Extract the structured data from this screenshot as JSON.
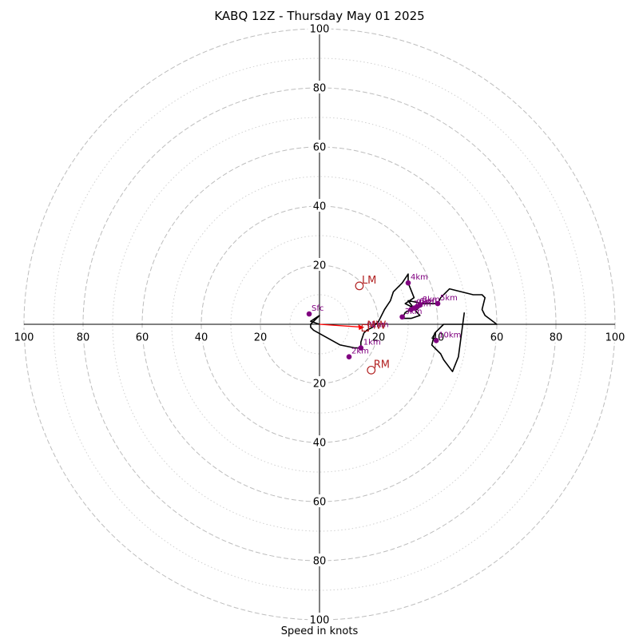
{
  "chart_data": {
    "type": "hodograph",
    "title": "KABQ 12Z - Thursday May 01 2025",
    "xlabel": "Speed in knots",
    "units": "knots",
    "max_speed": 100,
    "rings_major": [
      20,
      40,
      60,
      80,
      100
    ],
    "rings_minor": [
      10,
      30,
      50,
      70,
      90
    ],
    "tick_labels": [
      "20",
      "40",
      "60",
      "80",
      "100"
    ],
    "grid": true,
    "hodograph_trace": [
      [
        0,
        0
      ],
      [
        -3,
        1
      ],
      [
        0,
        3
      ],
      [
        -3,
        0
      ],
      [
        -3,
        -1
      ],
      [
        -2,
        -2
      ],
      [
        7,
        -7
      ],
      [
        12,
        -8
      ],
      [
        14,
        -8
      ],
      [
        14,
        -6
      ],
      [
        15,
        -3
      ],
      [
        16,
        -2
      ],
      [
        18,
        -1
      ],
      [
        20,
        1
      ],
      [
        22,
        5
      ],
      [
        24,
        8
      ],
      [
        25,
        11
      ],
      [
        28,
        14
      ],
      [
        30,
        17
      ],
      [
        30,
        14
      ],
      [
        32,
        9
      ],
      [
        29,
        7
      ],
      [
        33,
        5
      ],
      [
        35,
        7
      ],
      [
        30,
        8
      ],
      [
        33,
        4
      ],
      [
        34,
        3
      ],
      [
        31,
        2
      ],
      [
        28,
        2
      ],
      [
        29,
        4
      ],
      [
        31,
        5
      ],
      [
        33,
        6
      ],
      [
        35,
        7
      ],
      [
        38,
        7
      ],
      [
        40,
        7
      ],
      [
        41,
        9
      ],
      [
        44,
        12
      ],
      [
        52,
        10
      ],
      [
        55,
        10
      ],
      [
        56,
        9
      ],
      [
        55,
        5
      ],
      [
        56,
        3
      ],
      [
        60,
        0
      ],
      [
        44,
        0
      ],
      [
        42,
        0
      ],
      [
        39,
        -3
      ],
      [
        38,
        -7
      ],
      [
        41,
        -10
      ],
      [
        42,
        -12
      ],
      [
        45,
        -16
      ],
      [
        47,
        -11
      ],
      [
        49,
        4
      ]
    ],
    "height_points": [
      {
        "label": "Sfc",
        "u": -3.5,
        "v": 3.5
      },
      {
        "label": "1km",
        "u": 14,
        "v": -8
      },
      {
        "label": "2km",
        "u": 10,
        "v": -11
      },
      {
        "label": "3km",
        "u": 28,
        "v": 2.5
      },
      {
        "label": "4km",
        "u": 30,
        "v": 14
      },
      {
        "label": "5km",
        "u": 40,
        "v": 7
      },
      {
        "label": "6km",
        "u": 33,
        "v": 6
      },
      {
        "label": "7km",
        "u": 31,
        "v": 5
      },
      {
        "label": "8km",
        "u": 34,
        "v": 6.5
      },
      {
        "label": "9km",
        "u": 32,
        "v": 5.5
      },
      {
        "label": "10km",
        "u": 39.5,
        "v": -5.5
      }
    ],
    "overlap_labels": [
      {
        "label": "0km",
        "u": 16,
        "v": -1.5
      },
      {
        "label": "1km",
        "u": 17.5,
        "v": -1.5
      }
    ],
    "motion_points": [
      {
        "label": "LM",
        "u": 13.5,
        "v": 13
      },
      {
        "label": "RM",
        "u": 17.5,
        "v": -15.5
      },
      {
        "label": "MW",
        "u": 15.5,
        "v": -1.2
      }
    ],
    "shear_vector": {
      "from": [
        0,
        0
      ],
      "to": [
        15,
        -1
      ]
    },
    "colors": {
      "trace": "#000000",
      "height_points": "#800080",
      "motions": "#b22222",
      "shear_vector": "#ff0000",
      "grid": "#bdbdbd"
    }
  }
}
